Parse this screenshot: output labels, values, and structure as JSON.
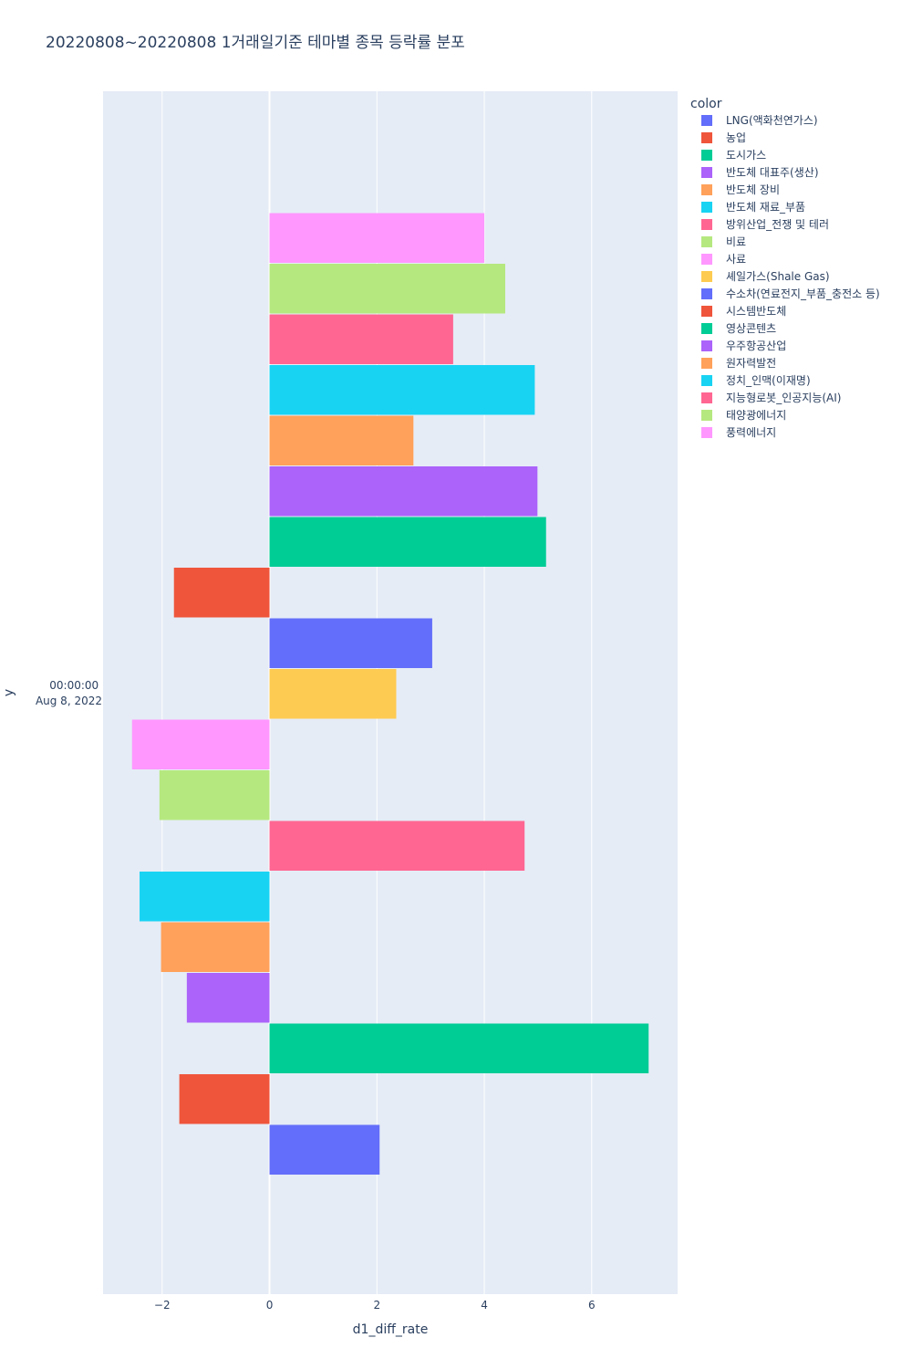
{
  "chart_data": {
    "type": "bar",
    "orientation": "horizontal",
    "title": "20220808~20220808 1거래일기준 테마별 종목 등락률 분포",
    "xlabel": "d1_diff_rate",
    "ylabel": "y",
    "y_tick": [
      "00:00:00",
      "Aug 8, 2022"
    ],
    "xlim": [
      -3.1,
      7.6
    ],
    "x_ticks": [
      -2,
      0,
      2,
      4,
      6
    ],
    "x_tick_labels": [
      "−2",
      "0",
      "2",
      "4",
      "6"
    ],
    "grid": true,
    "legend_title": "color",
    "legend_position": "right",
    "series": [
      {
        "name": "LNG(액화천연가스)",
        "color": "#636efa",
        "values": [
          2.05
        ]
      },
      {
        "name": "농업",
        "color": "#EF553B",
        "values": [
          -1.68
        ]
      },
      {
        "name": "도시가스",
        "color": "#00cc96",
        "values": [
          7.06
        ]
      },
      {
        "name": "반도체 대표주(생산)",
        "color": "#ab63fa",
        "values": [
          -1.54
        ]
      },
      {
        "name": "반도체 장비",
        "color": "#FFA15A",
        "values": [
          -2.02
        ]
      },
      {
        "name": "반도체 재료_부품",
        "color": "#19d3f3",
        "values": [
          -2.42
        ]
      },
      {
        "name": "방위산업_전쟁 및 테러",
        "color": "#FF6692",
        "values": [
          4.75
        ]
      },
      {
        "name": "비료",
        "color": "#B6E880",
        "values": [
          -2.05
        ]
      },
      {
        "name": "사료",
        "color": "#FF97FF",
        "values": [
          -2.56
        ]
      },
      {
        "name": "셰일가스(Shale Gas)",
        "color": "#FECB52",
        "values": [
          2.36
        ]
      },
      {
        "name": "수소차(연료전지_부품_충전소 등)",
        "color": "#636efa",
        "values": [
          3.03
        ]
      },
      {
        "name": "시스템반도체",
        "color": "#EF553B",
        "values": [
          -1.78
        ]
      },
      {
        "name": "영상콘텐츠",
        "color": "#00cc96",
        "values": [
          5.15
        ]
      },
      {
        "name": "우주항공산업",
        "color": "#ab63fa",
        "values": [
          4.99
        ]
      },
      {
        "name": "원자력발전",
        "color": "#FFA15A",
        "values": [
          2.68
        ]
      },
      {
        "name": "정치_인맥(이재명)",
        "color": "#19d3f3",
        "values": [
          4.94
        ]
      },
      {
        "name": "지능형로봇_인공지능(AI)",
        "color": "#FF6692",
        "values": [
          3.42
        ]
      },
      {
        "name": "태양광에너지",
        "color": "#B6E880",
        "values": [
          4.39
        ]
      },
      {
        "name": "풍력에너지",
        "color": "#FF97FF",
        "values": [
          4.0
        ]
      }
    ]
  }
}
